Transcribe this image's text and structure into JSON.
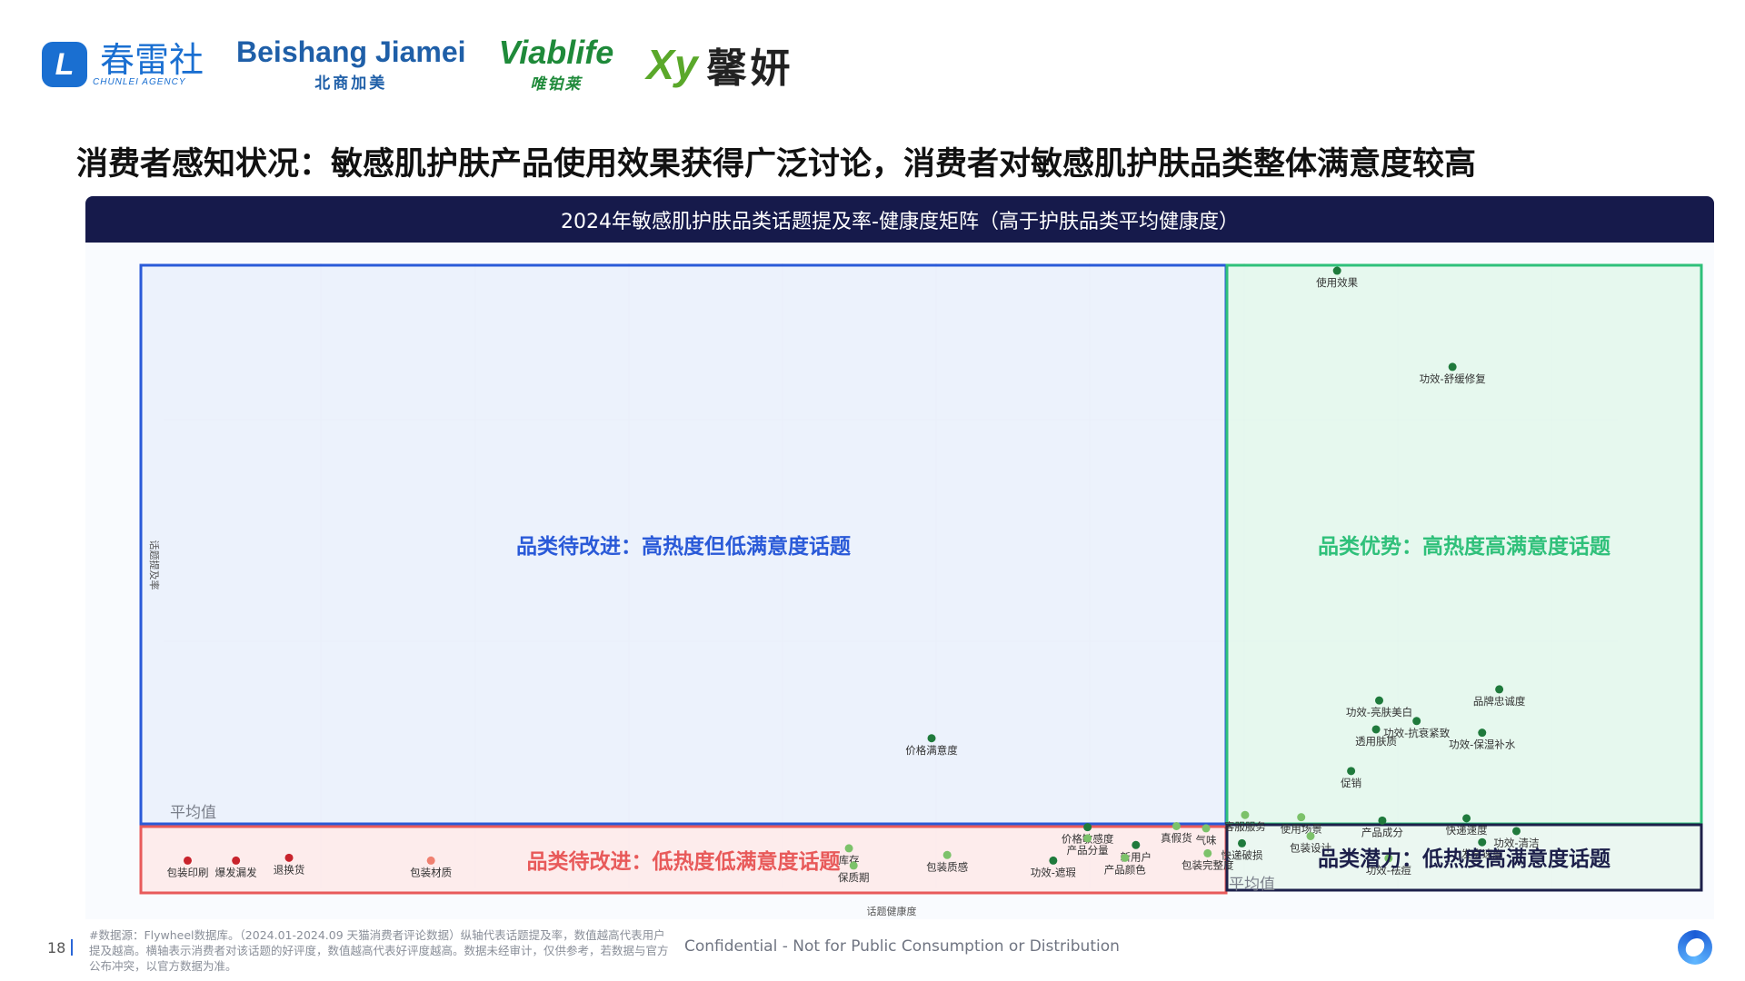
{
  "logos": [
    {
      "name": "春雷社",
      "sub": "CHUNLEI AGENCY",
      "mark": "L"
    },
    {
      "name": "Beishang Jiamei",
      "sub": "北商加美"
    },
    {
      "name": "Viablife",
      "sub": "唯铂莱"
    },
    {
      "name": "Xy",
      "sub": "馨妍"
    }
  ],
  "headline": "消费者感知状况：敏感肌护肤产品使用效果获得广泛讨论，消费者对敏感肌护肤品类整体满意度较高",
  "panel_title": "2024年敏感肌护肤品类话题提及率-健康度矩阵（高于护肤品类平均健康度）",
  "footer": {
    "page_number": "18",
    "footnote": "#数据源：Flywheel数据库。（2024.01-2024.09 天猫消费者评论数据）纵轴代表话题提及率，数值越高代表用户提及越高。横轴表示消费者对该话题的好评度，数值越高代表好评度越高。数据未经审计，仅供参考，若数据与官方公布冲突，以官方数据为准。",
    "confidential": "Confidential - Not for Public Consumption or Distribution"
  },
  "colors": {
    "navy": "#161a4b",
    "blue_quadrant": "#2a5ad8",
    "green_quadrant": "#2fc07a",
    "red_quadrant": "#e85a5a",
    "dark_quadrant": "#1c1f4a",
    "green_point": "#1f7a3c",
    "light_green_point": "#7cc26a",
    "red_point": "#c8232c",
    "salmon_point": "#f08070"
  },
  "chart_data": {
    "type": "scatter",
    "xlabel": "话题健康度",
    "ylabel": "话题提及率",
    "axis_ranges": "not printed",
    "grid": true,
    "avg_label": "平均值",
    "quadrants": [
      {
        "id": "top-left",
        "label": "品类待改进：高热度但低满意度话题",
        "color": "#2a5ad8"
      },
      {
        "id": "top-right",
        "label": "品类优势：高热度高满意度话题",
        "color": "#2fc07a"
      },
      {
        "id": "bottom-left",
        "label": "品类待改进：低热度低满意度话题",
        "color": "#e85a5a"
      },
      {
        "id": "bottom-right",
        "label": "品类潜力：低热度高满意度话题",
        "color": "#1c1f4a"
      }
    ],
    "note": "Values are relative positions (x: health 0-1, y: mention rate 0-1); the chart prints no axis numbers.",
    "points": [
      {
        "label": "使用效果",
        "x": 0.767,
        "y": 0.995,
        "color": "#1f7a3c"
      },
      {
        "label": "功效-舒缓修复",
        "x": 0.841,
        "y": 0.822,
        "color": "#1f7a3c"
      },
      {
        "label": "品牌忠诚度",
        "x": 0.871,
        "y": 0.242,
        "color": "#1f7a3c"
      },
      {
        "label": "功效-亮肤美白",
        "x": 0.794,
        "y": 0.222,
        "color": "#1f7a3c"
      },
      {
        "label": "功效-抗衰紧致",
        "x": 0.818,
        "y": 0.185,
        "color": "#1f7a3c"
      },
      {
        "label": "透用肤质",
        "x": 0.792,
        "y": 0.17,
        "color": "#1f7a3c"
      },
      {
        "label": "功效-保湿补水",
        "x": 0.86,
        "y": 0.164,
        "color": "#1f7a3c"
      },
      {
        "label": "促销",
        "x": 0.776,
        "y": 0.095,
        "color": "#1f7a3c"
      },
      {
        "label": "客服服务",
        "x": 0.708,
        "y": 0.016,
        "color": "#7cc26a"
      },
      {
        "label": "使用场景",
        "x": 0.744,
        "y": 0.012,
        "color": "#7cc26a"
      },
      {
        "label": "产品成分",
        "x": 0.796,
        "y": 0.006,
        "color": "#1f7a3c"
      },
      {
        "label": "快递速度",
        "x": 0.85,
        "y": 0.01,
        "color": "#1f7a3c"
      },
      {
        "label": "价格满意度",
        "x": 0.507,
        "y": 0.154,
        "color": "#1f7a3c"
      },
      {
        "label": "价格敏感度",
        "x": 0.607,
        "y": -0.006,
        "color": "#1f7a3c"
      },
      {
        "label": "真假货",
        "x": 0.664,
        "y": -0.004,
        "color": "#7cc26a"
      },
      {
        "label": "气味",
        "x": 0.683,
        "y": -0.008,
        "color": "#7cc26a"
      },
      {
        "label": "快递破损",
        "x": 0.706,
        "y": -0.035,
        "color": "#1f7a3c"
      },
      {
        "label": "包装设计",
        "x": 0.75,
        "y": -0.022,
        "color": "#7cc26a"
      },
      {
        "label": "发货速度",
        "x": 0.86,
        "y": -0.033,
        "color": "#1f7a3c"
      },
      {
        "label": "功效-祛痘",
        "x": 0.8,
        "y": -0.062,
        "color": "#7cc26a"
      },
      {
        "label": "功效-清洁",
        "x": 0.882,
        "y": -0.013,
        "color": "#1f7a3c"
      },
      {
        "label": "产品分量",
        "x": 0.607,
        "y": -0.026,
        "color": "#7cc26a"
      },
      {
        "label": "新用户",
        "x": 0.638,
        "y": -0.038,
        "color": "#1f7a3c"
      },
      {
        "label": "产品颜色",
        "x": 0.631,
        "y": -0.061,
        "color": "#7cc26a"
      },
      {
        "label": "包装完整度",
        "x": 0.684,
        "y": -0.053,
        "color": "#7cc26a"
      },
      {
        "label": "功效-遮瑕",
        "x": 0.585,
        "y": -0.066,
        "color": "#1f7a3c"
      },
      {
        "label": "包装质感",
        "x": 0.517,
        "y": -0.056,
        "color": "#7cc26a"
      },
      {
        "label": "库存",
        "x": 0.454,
        "y": -0.044,
        "color": "#7cc26a"
      },
      {
        "label": "保质期",
        "x": 0.457,
        "y": -0.075,
        "color": "#7cc26a"
      },
      {
        "label": "包装材质",
        "x": 0.186,
        "y": -0.066,
        "color": "#f08070"
      },
      {
        "label": "退换货",
        "x": 0.095,
        "y": -0.061,
        "color": "#c8232c"
      },
      {
        "label": "爆发漏发",
        "x": 0.061,
        "y": -0.066,
        "color": "#c8232c"
      },
      {
        "label": "包装印刷",
        "x": 0.03,
        "y": -0.066,
        "color": "#c8232c"
      }
    ]
  }
}
